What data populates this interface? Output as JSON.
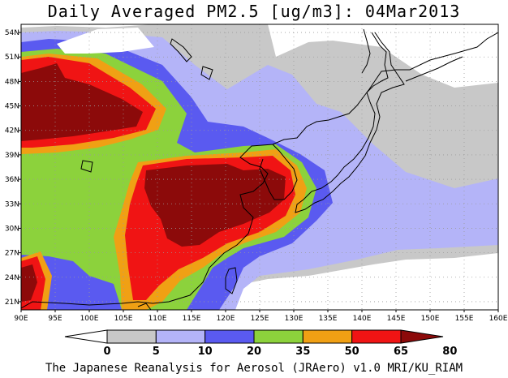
{
  "title": "Daily Averaged PM2.5 [ug/m3]: 04Mar2013",
  "credit": "The Japanese Reanalysis for Aerosol (JRAero) v1.0 MRI/KU_RIAM",
  "map": {
    "lon_range": [
      90,
      160
    ],
    "lat_range": [
      20,
      55
    ],
    "lon_ticks": [
      "90E",
      "95E",
      "100E",
      "105E",
      "110E",
      "115E",
      "120E",
      "125E",
      "130E",
      "135E",
      "140E",
      "145E",
      "150E",
      "155E",
      "160E"
    ],
    "lat_ticks": [
      "21N",
      "24N",
      "27N",
      "30N",
      "33N",
      "36N",
      "39N",
      "42N",
      "45N",
      "48N",
      "51N",
      "54N"
    ],
    "grid": true
  },
  "colorbar": {
    "labels": [
      "0",
      "5",
      "10",
      "20",
      "35",
      "50",
      "65",
      "80"
    ],
    "colors": [
      "#ffffff",
      "#c8c8c8",
      "#b4b4f8",
      "#5a5af0",
      "#8cd23c",
      "#f0a014",
      "#f01414",
      "#8c0a0a"
    ]
  }
}
